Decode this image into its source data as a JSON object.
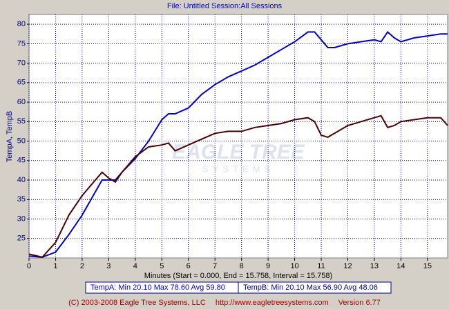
{
  "chart_data": {
    "type": "line",
    "title": "File: Untitled   Session:All Sessions",
    "ylabel": "TempA, TempB",
    "xlabel": "Minutes (Start = 0.000,  End = 15.758,  Interval = 15.758)",
    "watermark": [
      "EAGLE TREE",
      "SYSTEMS"
    ],
    "footer": [
      "(C) 2003-2008 Eagle Tree Systems, LLC",
      "http://www.eagletreesystems.com",
      "Version 6.77"
    ],
    "x": [
      0,
      0.5,
      1,
      1.5,
      2,
      2.5,
      2.75,
      3,
      3.25,
      3.5,
      4,
      4.5,
      5,
      5.25,
      5.5,
      6,
      6.5,
      7,
      7.5,
      8,
      8.5,
      9,
      9.5,
      10,
      10.5,
      10.75,
      11,
      11.25,
      11.5,
      12,
      12.5,
      13,
      13.25,
      13.5,
      13.75,
      14,
      14.5,
      15,
      15.5,
      15.758
    ],
    "series": [
      {
        "name": "TempA:  Min 20.10    Max 78.60    Avg 59.80",
        "color": "#0000cc",
        "values": [
          20.5,
          20.2,
          21.5,
          26,
          31,
          37,
          40,
          40,
          40,
          42,
          45.5,
          50,
          55.5,
          57,
          57,
          58.5,
          62,
          64.5,
          66.5,
          68,
          69.5,
          71.5,
          73.5,
          75.5,
          78,
          78,
          76,
          74,
          74,
          75,
          75.5,
          76,
          75.5,
          78,
          76.5,
          75.5,
          76.5,
          77,
          77.5,
          77.5
        ]
      },
      {
        "name": "TempB:  Min 20.10    Max 56.90    Avg 48.06",
        "color": "#4a0000",
        "values": [
          21,
          20.2,
          24,
          31,
          36,
          40,
          42,
          40.5,
          39.5,
          42,
          46,
          48.5,
          49,
          49.5,
          47.5,
          49,
          50.5,
          52,
          52.5,
          52.5,
          53.5,
          54,
          54.5,
          55.5,
          56,
          55,
          51.5,
          51,
          52,
          54,
          55,
          56,
          56.5,
          53.5,
          54,
          55,
          55.5,
          56,
          56,
          54
        ]
      }
    ],
    "xlim": [
      0,
      15.758
    ],
    "xticks": [
      0,
      1,
      2,
      3,
      4,
      5,
      6,
      7,
      8,
      9,
      10,
      11,
      12,
      13,
      14,
      15
    ],
    "ylim": [
      20,
      82.5
    ],
    "yticks": [
      25,
      30,
      35,
      40,
      45,
      50,
      55,
      60,
      65,
      70,
      75,
      80
    ],
    "grid": true
  }
}
